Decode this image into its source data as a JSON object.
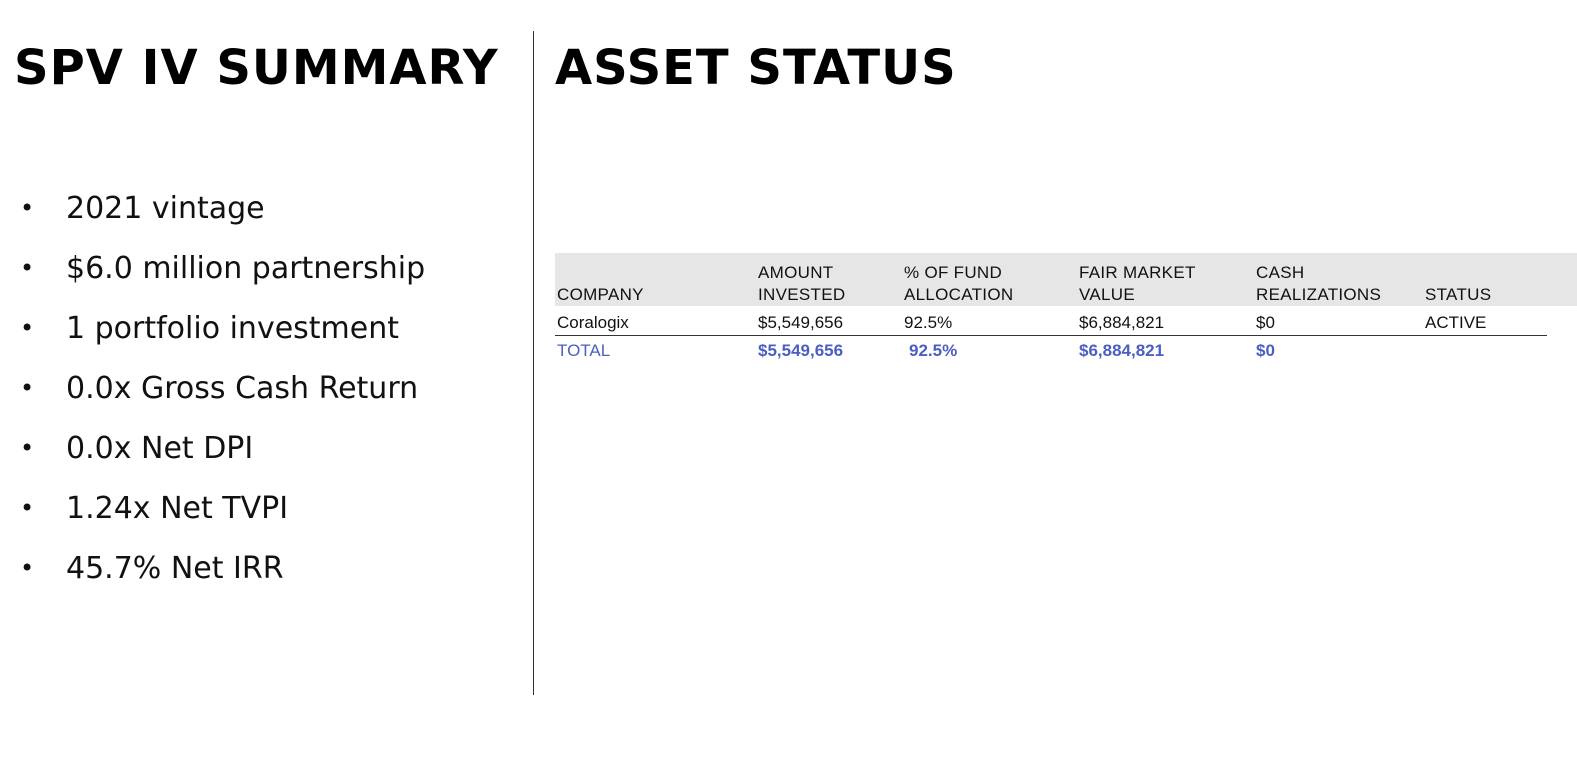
{
  "left": {
    "title": "SPV IV SUMMARY",
    "bullets": [
      "2021 vintage",
      "$6.0 million partnership",
      "1 portfolio investment",
      "0.0x Gross Cash Return",
      "0.0x Net DPI",
      "1.24x Net TVPI",
      "45.7% Net IRR"
    ]
  },
  "right": {
    "title": "ASSET STATUS",
    "table": {
      "headers": [
        "COMPANY",
        "AMOUNT\nINVESTED",
        "% OF FUND\nALLOCATION",
        "FAIR MARKET\nVALUE",
        "CASH\nREALIZATIONS",
        "STATUS"
      ],
      "rows": [
        [
          "Coralogix",
          "$5,549,656",
          "92.5%",
          "$6,884,821",
          "$0",
          "ACTIVE"
        ]
      ],
      "total": [
        "TOTAL",
        "$5,549,656",
        "92.5%",
        "$6,884,821",
        "$0"
      ]
    }
  },
  "colors": {
    "total_text": "#4a5fc1",
    "header_bg": "#e7e6e6"
  }
}
